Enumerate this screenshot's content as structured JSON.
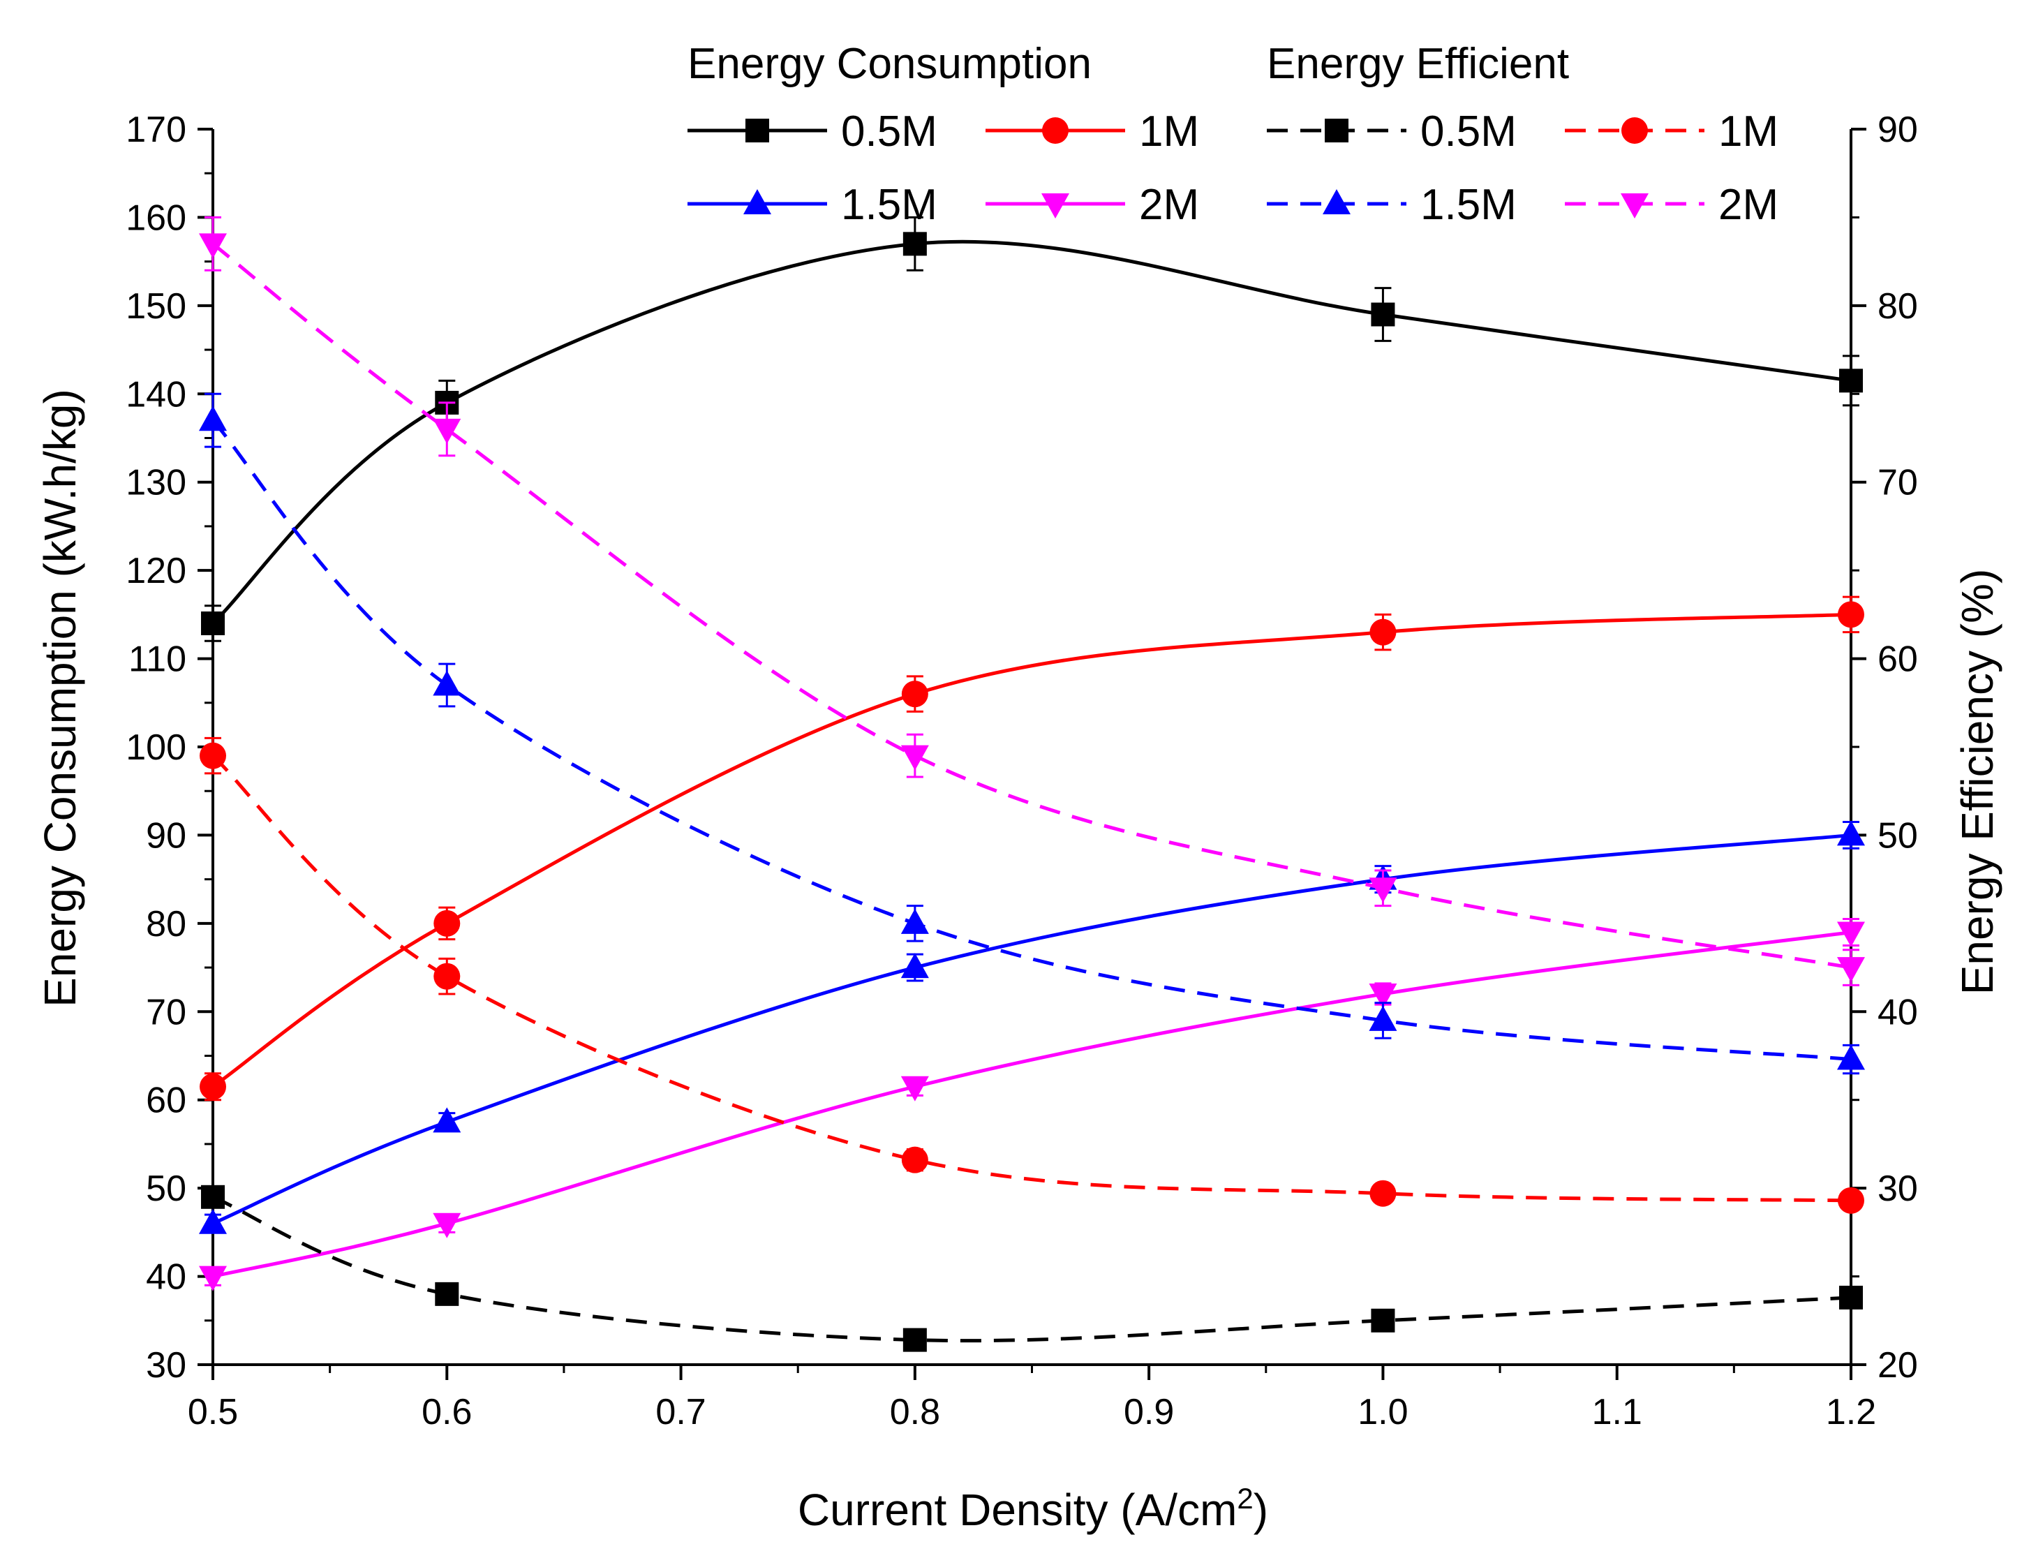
{
  "chart_data": {
    "type": "line",
    "xlabel": "Current Density (A/cm",
    "xlabel_sup": "2",
    "xlabel_end": ")",
    "ylabel_left": "Energy Consumption (kW.h/kg)",
    "ylabel_right": "Energy Efficiency (%)",
    "xlim": [
      0.5,
      1.2
    ],
    "ylim_left": [
      30,
      170
    ],
    "ylim_right": [
      20,
      90
    ],
    "x_ticks": [
      "0.5",
      "0.6",
      "0.7",
      "0.8",
      "0.9",
      "1.0",
      "1.1",
      "1.2"
    ],
    "y_left_ticks": [
      "30",
      "40",
      "50",
      "60",
      "70",
      "80",
      "90",
      "100",
      "110",
      "120",
      "130",
      "140",
      "150",
      "160",
      "170"
    ],
    "y_right_ticks": [
      "20",
      "30",
      "40",
      "50",
      "60",
      "70",
      "80",
      "90"
    ],
    "legend": {
      "header_left": "Energy Consumption",
      "header_right": "Energy Efficient"
    },
    "x": [
      0.5,
      0.6,
      0.8,
      1.0,
      1.2
    ],
    "series": [
      {
        "name": "0.5M",
        "group": "Energy Consumption",
        "axis": "left",
        "color": "#000000",
        "dash": false,
        "marker": "square",
        "values": [
          114,
          139,
          157,
          149,
          141.5
        ],
        "errors": [
          2,
          2.5,
          3,
          3,
          2.8
        ]
      },
      {
        "name": "1M",
        "group": "Energy Consumption",
        "axis": "left",
        "color": "#ff0000",
        "dash": false,
        "marker": "circle",
        "values": [
          61.5,
          80,
          106,
          113,
          115
        ],
        "errors": [
          1.5,
          1.8,
          2,
          2,
          2
        ]
      },
      {
        "name": "1.5M",
        "group": "Energy Consumption",
        "axis": "left",
        "color": "#0000ff",
        "dash": false,
        "marker": "triangle-up",
        "values": [
          46,
          57.5,
          75,
          85,
          90
        ],
        "errors": [
          1,
          1,
          1.5,
          1.5,
          1.5
        ]
      },
      {
        "name": "2M",
        "group": "Energy Consumption",
        "axis": "left",
        "color": "#ff00ff",
        "dash": false,
        "marker": "triangle-down",
        "values": [
          40,
          46,
          61.5,
          72,
          79
        ],
        "errors": [
          1,
          1,
          1,
          1.2,
          1.5
        ]
      },
      {
        "name": "0.5M",
        "group": "Energy Efficient",
        "axis": "right",
        "color": "#000000",
        "dash": true,
        "marker": "square",
        "values": [
          29.5,
          24,
          21.4,
          22.5,
          23.8
        ],
        "errors": [
          0.4,
          0.5,
          0.5,
          0.5,
          0.5
        ]
      },
      {
        "name": "1M",
        "group": "Energy Efficient",
        "axis": "right",
        "color": "#ff0000",
        "dash": true,
        "marker": "circle",
        "values": [
          54.5,
          42,
          31.6,
          29.7,
          29.3
        ],
        "errors": [
          1,
          1,
          0.6,
          0.5,
          0.5
        ]
      },
      {
        "name": "1.5M",
        "group": "Energy Efficient",
        "axis": "right",
        "color": "#0000ff",
        "dash": true,
        "marker": "triangle-up",
        "values": [
          73.5,
          58.5,
          45,
          39.5,
          37.3
        ],
        "errors": [
          1.5,
          1.2,
          1,
          1,
          0.8
        ]
      },
      {
        "name": "2M",
        "group": "Energy Efficient",
        "axis": "right",
        "color": "#ff00ff",
        "dash": true,
        "marker": "triangle-down",
        "values": [
          83.5,
          73,
          54.5,
          47,
          42.5
        ],
        "errors": [
          1.5,
          1.5,
          1.2,
          1,
          1
        ]
      }
    ]
  }
}
